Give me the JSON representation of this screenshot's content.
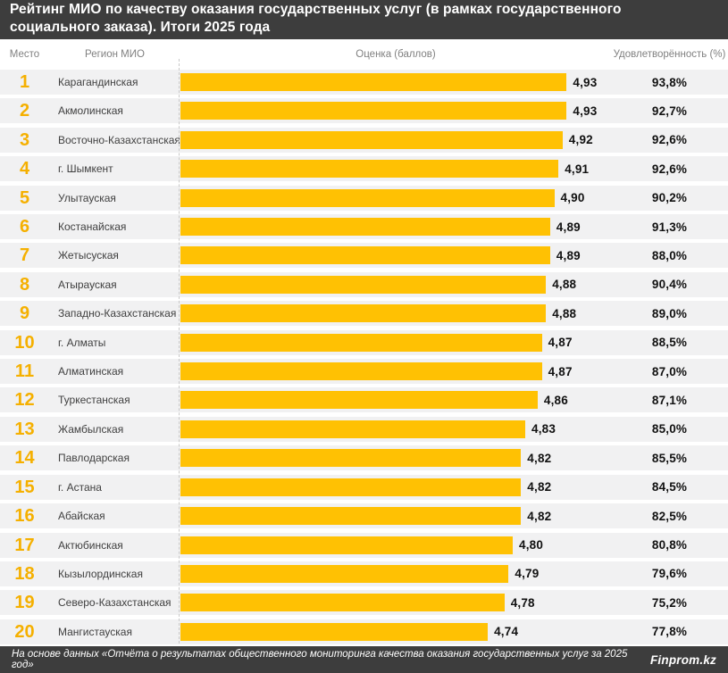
{
  "title": "Рейтинг МИО по качеству оказания государственных услуг (в рамках государственного социального заказа). Итоги 2025 года",
  "columns": {
    "rank": "Место",
    "region": "Регион МИО",
    "score": "Оценка (баллов)",
    "satisfaction": "Удовлетворённость (%)"
  },
  "footer": {
    "source": "На основе данных «Отчёта о результатах общественного мониторинга качества оказания государственных услуг за 2025 год»",
    "brand": "Finprom.kz"
  },
  "colors": {
    "bar": "#FFC103",
    "rank_number": "#F5B000",
    "header_bg": "#3D3D3D",
    "row_band": "#F1F1F2"
  },
  "chart_data": {
    "type": "bar",
    "orientation": "horizontal",
    "title": "Рейтинг МИО по качеству оказания государственных услуг (в рамках государственного социального заказа). Итоги 2025 года",
    "xlabel": "Оценка (баллов)",
    "secondary_metric": "Удовлетворённость (%)",
    "axis_min": 4.0,
    "axis_max": 5.0,
    "grid": false,
    "legend": false,
    "rows": [
      {
        "rank": 1,
        "region": "Карагандинская",
        "score": 4.93,
        "score_label": "4,93",
        "satisfaction": 93.8,
        "satisfaction_label": "93,8%"
      },
      {
        "rank": 2,
        "region": "Акмолинская",
        "score": 4.93,
        "score_label": "4,93",
        "satisfaction": 92.7,
        "satisfaction_label": "92,7%"
      },
      {
        "rank": 3,
        "region": "Восточно-Казахстанская",
        "score": 4.92,
        "score_label": "4,92",
        "satisfaction": 92.6,
        "satisfaction_label": "92,6%"
      },
      {
        "rank": 4,
        "region": "г. Шымкент",
        "score": 4.91,
        "score_label": "4,91",
        "satisfaction": 92.6,
        "satisfaction_label": "92,6%"
      },
      {
        "rank": 5,
        "region": "Улытауская",
        "score": 4.9,
        "score_label": "4,90",
        "satisfaction": 90.2,
        "satisfaction_label": "90,2%"
      },
      {
        "rank": 6,
        "region": "Костанайская",
        "score": 4.89,
        "score_label": "4,89",
        "satisfaction": 91.3,
        "satisfaction_label": "91,3%"
      },
      {
        "rank": 7,
        "region": "Жетысуская",
        "score": 4.89,
        "score_label": "4,89",
        "satisfaction": 88.0,
        "satisfaction_label": "88,0%"
      },
      {
        "rank": 8,
        "region": "Атырауская",
        "score": 4.88,
        "score_label": "4,88",
        "satisfaction": 90.4,
        "satisfaction_label": "90,4%"
      },
      {
        "rank": 9,
        "region": "Западно-Казахстанская",
        "score": 4.88,
        "score_label": "4,88",
        "satisfaction": 89.0,
        "satisfaction_label": "89,0%"
      },
      {
        "rank": 10,
        "region": "г. Алматы",
        "score": 4.87,
        "score_label": "4,87",
        "satisfaction": 88.5,
        "satisfaction_label": "88,5%"
      },
      {
        "rank": 11,
        "region": "Алматинская",
        "score": 4.87,
        "score_label": "4,87",
        "satisfaction": 87.0,
        "satisfaction_label": "87,0%"
      },
      {
        "rank": 12,
        "region": "Туркестанская",
        "score": 4.86,
        "score_label": "4,86",
        "satisfaction": 87.1,
        "satisfaction_label": "87,1%"
      },
      {
        "rank": 13,
        "region": "Жамбылская",
        "score": 4.83,
        "score_label": "4,83",
        "satisfaction": 85.0,
        "satisfaction_label": "85,0%"
      },
      {
        "rank": 14,
        "region": "Павлодарская",
        "score": 4.82,
        "score_label": "4,82",
        "satisfaction": 85.5,
        "satisfaction_label": "85,5%"
      },
      {
        "rank": 15,
        "region": "г. Астана",
        "score": 4.82,
        "score_label": "4,82",
        "satisfaction": 84.5,
        "satisfaction_label": "84,5%"
      },
      {
        "rank": 16,
        "region": "Абайская",
        "score": 4.82,
        "score_label": "4,82",
        "satisfaction": 82.5,
        "satisfaction_label": "82,5%"
      },
      {
        "rank": 17,
        "region": "Актюбинская",
        "score": 4.8,
        "score_label": "4,80",
        "satisfaction": 80.8,
        "satisfaction_label": "80,8%"
      },
      {
        "rank": 18,
        "region": "Кызылординская",
        "score": 4.79,
        "score_label": "4,79",
        "satisfaction": 79.6,
        "satisfaction_label": "79,6%"
      },
      {
        "rank": 19,
        "region": "Северо-Казахстанская",
        "score": 4.78,
        "score_label": "4,78",
        "satisfaction": 75.2,
        "satisfaction_label": "75,2%"
      },
      {
        "rank": 20,
        "region": "Мангистауская",
        "score": 4.74,
        "score_label": "4,74",
        "satisfaction": 77.8,
        "satisfaction_label": "77,8%"
      }
    ]
  }
}
